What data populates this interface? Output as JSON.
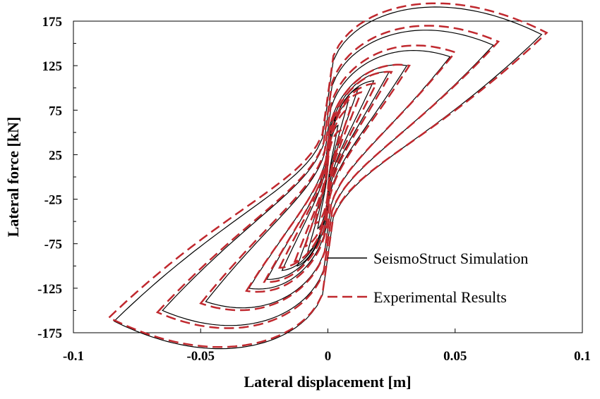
{
  "chart_data": {
    "type": "line",
    "title": "",
    "xlabel": "Lateral displacement [m]",
    "ylabel": "Lateral force [kN]",
    "xlim": [
      -0.1,
      0.1
    ],
    "ylim": [
      -175,
      175
    ],
    "x_ticks": [
      "-0.1",
      "-0.05",
      "0",
      "0.05",
      "0.1"
    ],
    "y_ticks": [
      "175",
      "125",
      "75",
      "25",
      "-25",
      "-75",
      "-125",
      "-175"
    ],
    "grid": false,
    "legend_position": "bottom-right",
    "series": [
      {
        "name": "SeismoStruct Simulation",
        "style": "solid",
        "color": "#000000",
        "amplitudes": [
          0.004,
          0.008,
          0.012,
          0.018,
          0.024,
          0.031,
          0.048,
          0.065,
          0.084
        ],
        "peak_forces": [
          58,
          85,
          100,
          108,
          118,
          125,
          135,
          148,
          160
        ],
        "negative_peak_forces": [
          -58,
          -85,
          -100,
          -105,
          -115,
          -125,
          -140,
          -150,
          -162
        ]
      },
      {
        "name": "Experimental Results",
        "style": "dashed",
        "color": "#c0282e",
        "amplitudes": [
          0.005,
          0.009,
          0.013,
          0.019,
          0.025,
          0.032,
          0.05,
          0.067,
          0.086
        ],
        "peak_forces": [
          52,
          78,
          95,
          105,
          118,
          125,
          140,
          152,
          162
        ],
        "negative_peak_forces": [
          -52,
          -78,
          -95,
          -102,
          -118,
          -128,
          -142,
          -152,
          -158
        ]
      }
    ]
  }
}
